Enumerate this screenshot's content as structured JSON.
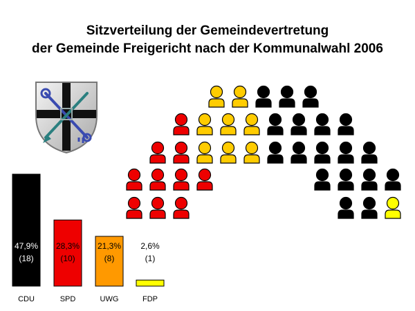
{
  "title_line1": "Sitzverteilung der Gemeindevertretung",
  "title_line2": "der Gemeinde Freigericht nach der Kommunalwahl 2006",
  "chart_data": {
    "type": "bar",
    "title": "Sitzverteilung der Gemeindevertretung der Gemeinde Freigericht nach der Kommunalwahl 2006",
    "categories": [
      "CDU",
      "SPD",
      "UWG",
      "FDP"
    ],
    "values": [
      47.9,
      28.3,
      21.3,
      2.6
    ],
    "value_labels": [
      "47,9%",
      "28,3%",
      "21,3%",
      "2,6%"
    ],
    "seats": [
      18,
      10,
      8,
      1
    ],
    "seat_labels": [
      "(18)",
      "(10)",
      "(8)",
      "(1)"
    ],
    "colors": [
      "#000000",
      "#ee0000",
      "#ff9900",
      "#ffff00"
    ],
    "seat_icon_colors": [
      "#000000",
      "#ee0000",
      "#ffcc00",
      "#ffff00"
    ],
    "total_seats": 37,
    "ylim": [
      0,
      50
    ],
    "grid": false,
    "xlabel": "",
    "ylabel": ""
  }
}
